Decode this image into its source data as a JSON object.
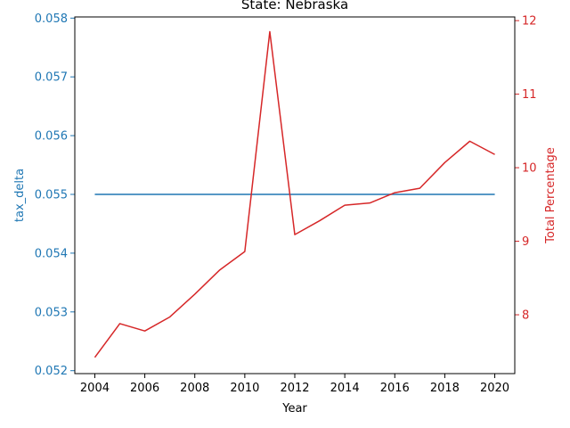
{
  "chart_data": {
    "type": "line",
    "title": "State: Nebraska",
    "xlabel": "Year",
    "ylabel_left": "tax_delta",
    "ylabel_right": "Total Percentage",
    "x": [
      2004,
      2005,
      2006,
      2007,
      2008,
      2009,
      2010,
      2011,
      2012,
      2013,
      2014,
      2015,
      2016,
      2017,
      2018,
      2019,
      2020
    ],
    "xlim": [
      2003.2,
      2020.8
    ],
    "x_ticks": [
      2004,
      2006,
      2008,
      2010,
      2012,
      2014,
      2016,
      2018,
      2020
    ],
    "ylim_left": [
      0.05195,
      0.05802
    ],
    "y_ticks_left": [
      "0.052",
      "0.053",
      "0.054",
      "0.055",
      "0.056",
      "0.057",
      "0.058"
    ],
    "ylim_right": [
      7.2,
      12.05
    ],
    "y_ticks_right": [
      "8",
      "9",
      "10",
      "11",
      "12"
    ],
    "grid": false,
    "series": [
      {
        "axis": "left",
        "color": "#1f77b4",
        "values": [
          0.055,
          0.055,
          0.055,
          0.055,
          0.055,
          0.055,
          0.055,
          0.055,
          0.055,
          0.055,
          0.055,
          0.055,
          0.055,
          0.055,
          0.055,
          0.055,
          0.055
        ]
      },
      {
        "axis": "right",
        "color": "#d62728",
        "values": [
          7.42,
          7.88,
          7.78,
          7.97,
          8.28,
          8.61,
          8.86,
          11.85,
          9.09,
          9.28,
          9.49,
          9.52,
          9.66,
          9.72,
          10.07,
          10.36,
          10.18
        ]
      }
    ],
    "left_axis_color": "#1f77b4",
    "right_axis_color": "#d62728"
  }
}
